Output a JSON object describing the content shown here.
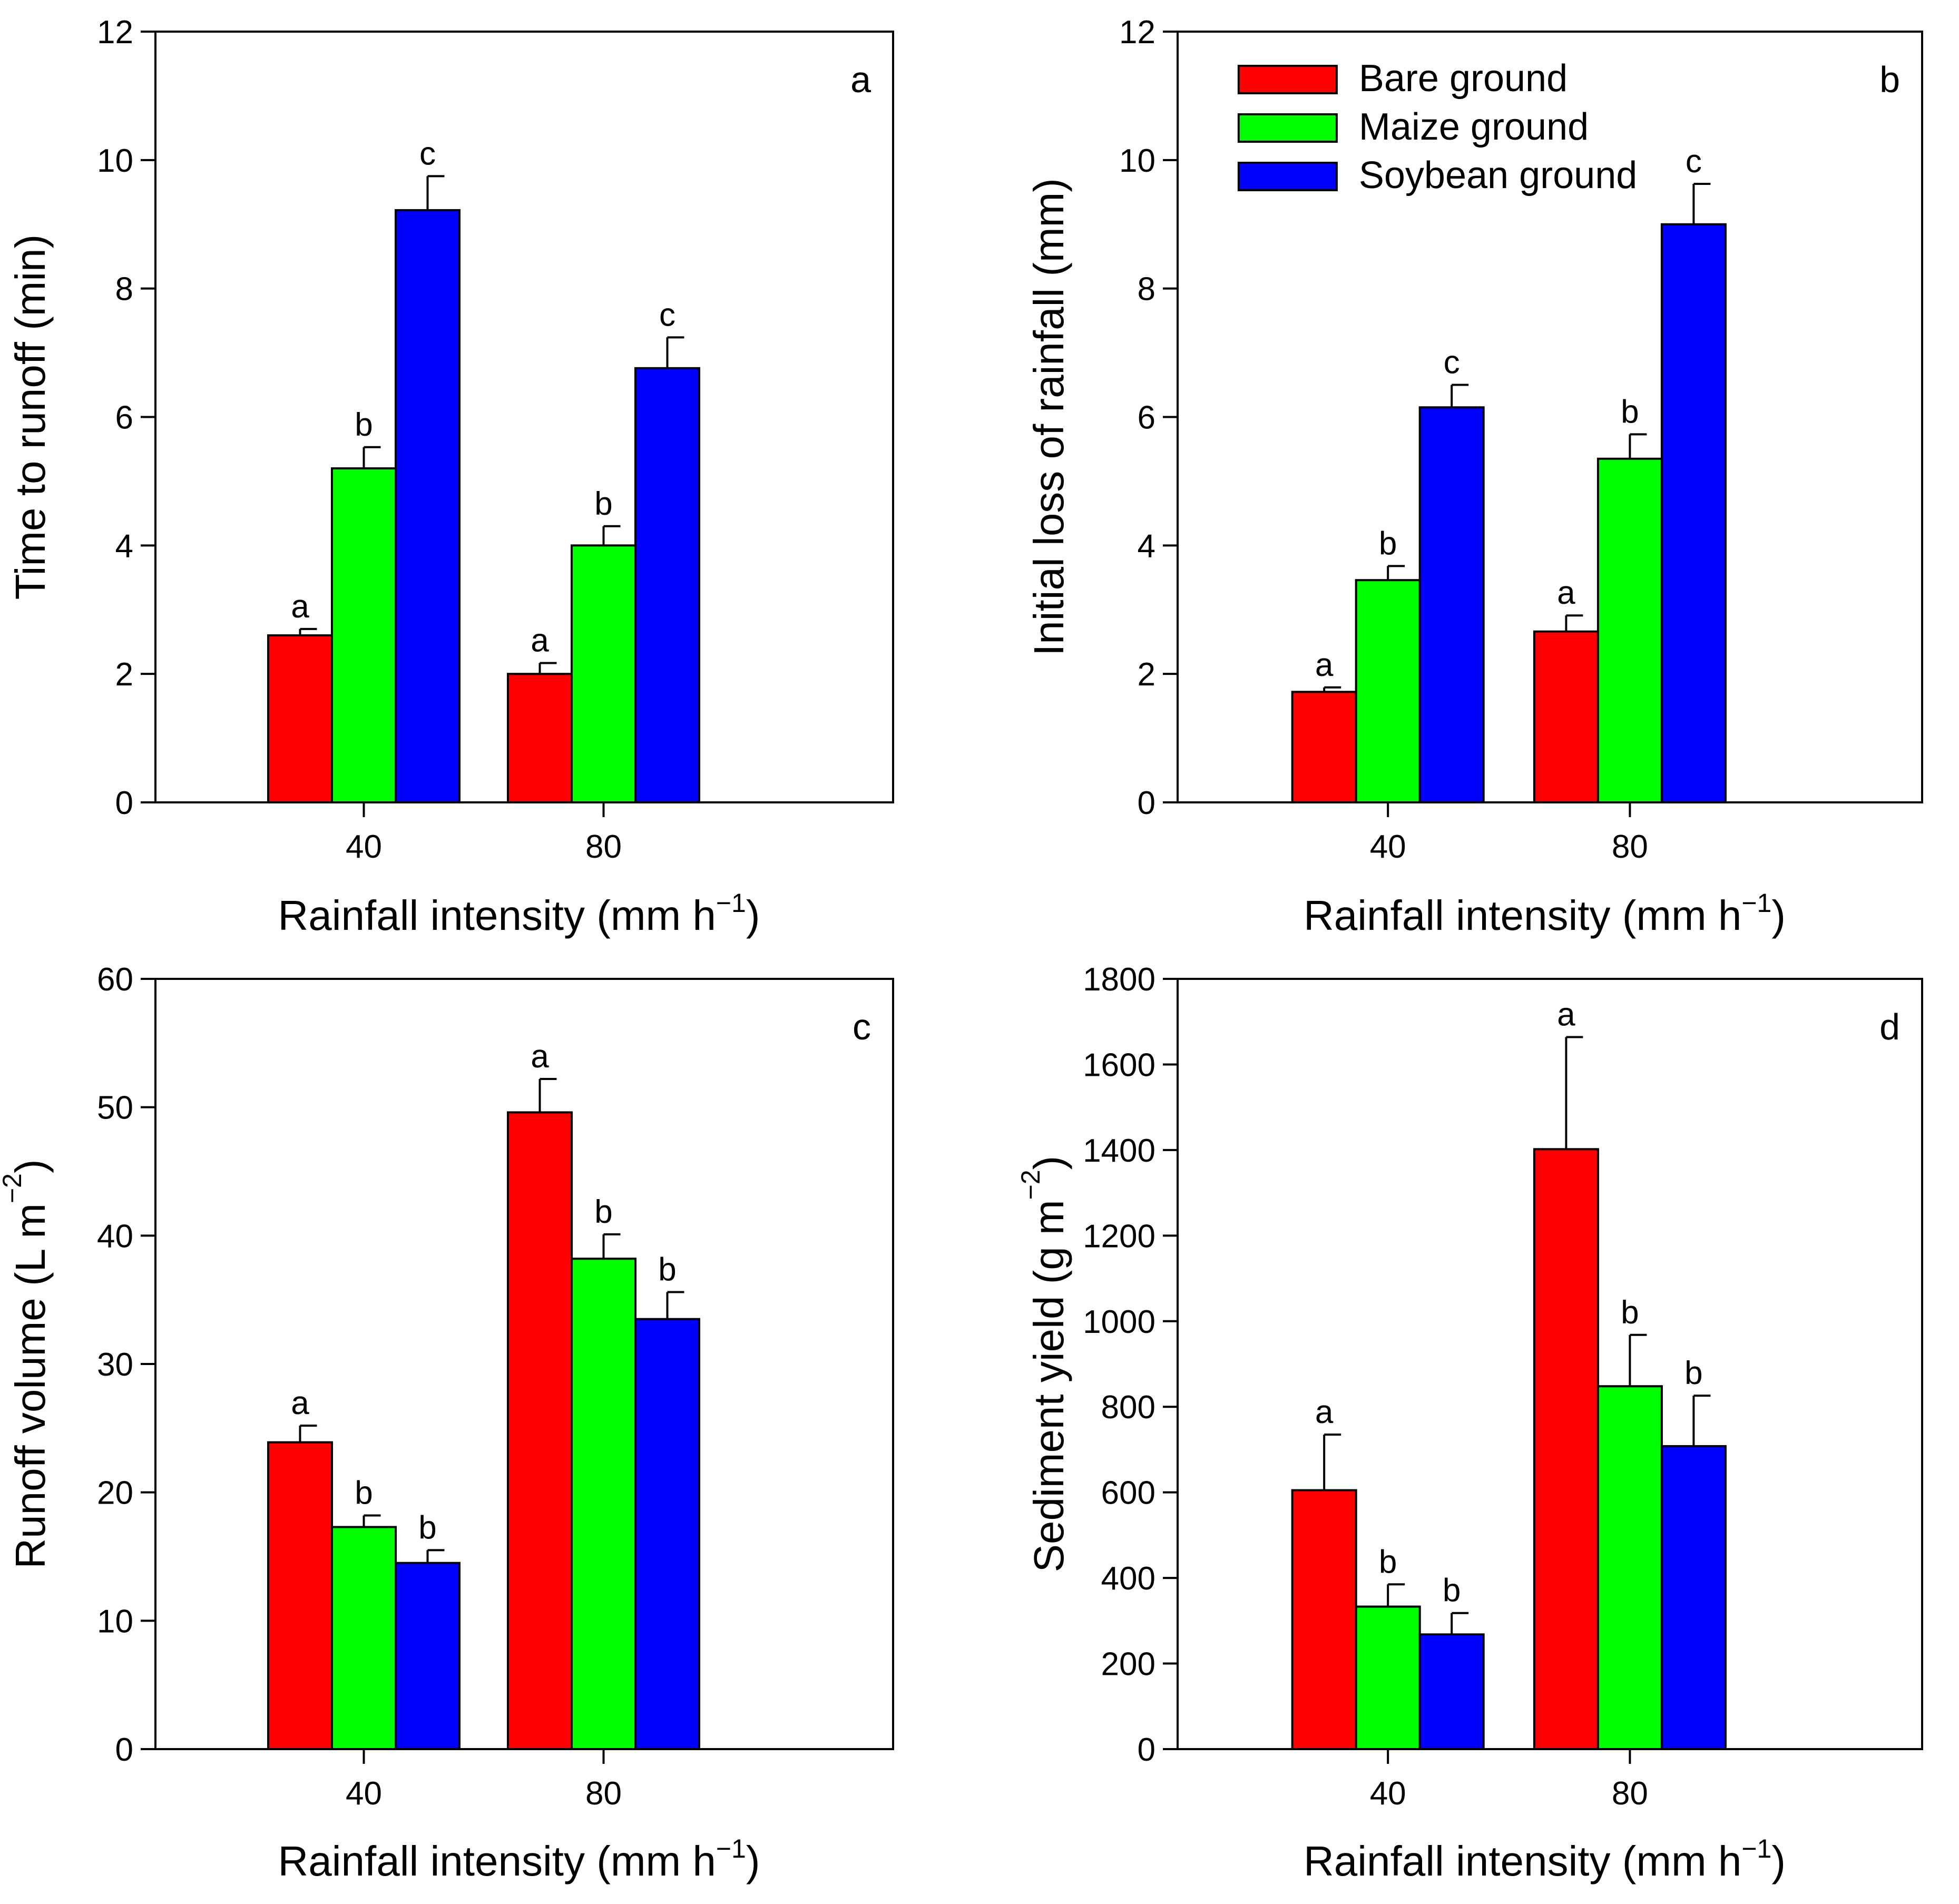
{
  "colors": {
    "bare": "#ff0000",
    "maize": "#00ff00",
    "soybean": "#0000ff"
  },
  "legend": {
    "panel": "b",
    "entries": [
      {
        "series": "bare",
        "label": "Bare ground"
      },
      {
        "series": "maize",
        "label": "Maize ground"
      },
      {
        "series": "soybean",
        "label": "Soybean ground"
      }
    ]
  },
  "chart_data": [
    {
      "id": "a",
      "type": "bar",
      "panel_letter": "a",
      "xlabel": {
        "main": "Rainfall intensity (mm h",
        "sup": "−1",
        "close": ")"
      },
      "ylabel": {
        "main": "Time to runoff (min)",
        "sup": "",
        "close": ""
      },
      "categories": [
        "40",
        "80"
      ],
      "ylim": [
        0,
        12
      ],
      "yticks": [
        "0",
        "2",
        "4",
        "6",
        "8",
        "10",
        "12"
      ],
      "series": [
        {
          "key": "bare",
          "name": "Bare ground",
          "values": [
            2.6,
            2.0
          ],
          "errors": [
            0.1,
            0.17
          ],
          "letters": [
            "a",
            "a"
          ]
        },
        {
          "key": "maize",
          "name": "Maize ground",
          "values": [
            5.2,
            4.0
          ],
          "errors": [
            0.33,
            0.3
          ],
          "letters": [
            "b",
            "b"
          ]
        },
        {
          "key": "soybean",
          "name": "Soybean ground",
          "values": [
            9.22,
            6.76
          ],
          "errors": [
            0.53,
            0.48
          ],
          "letters": [
            "c",
            "c"
          ]
        }
      ]
    },
    {
      "id": "b",
      "type": "bar",
      "panel_letter": "b",
      "xlabel": {
        "main": "Rainfall intensity (mm h",
        "sup": "−1",
        "close": ")"
      },
      "ylabel": {
        "main": "Initial loss of rainfall (mm)",
        "sup": "",
        "close": ""
      },
      "categories": [
        "40",
        "80"
      ],
      "ylim": [
        0,
        12
      ],
      "yticks": [
        "0",
        "2",
        "4",
        "6",
        "8",
        "10",
        "12"
      ],
      "series": [
        {
          "key": "bare",
          "name": "Bare ground",
          "values": [
            1.72,
            2.66
          ],
          "errors": [
            0.07,
            0.25
          ],
          "letters": [
            "a",
            "a"
          ]
        },
        {
          "key": "maize",
          "name": "Maize ground",
          "values": [
            3.46,
            5.35
          ],
          "errors": [
            0.22,
            0.38
          ],
          "letters": [
            "b",
            "b"
          ]
        },
        {
          "key": "soybean",
          "name": "Soybean ground",
          "values": [
            6.15,
            9.0
          ],
          "errors": [
            0.35,
            0.63
          ],
          "letters": [
            "c",
            "c"
          ]
        }
      ]
    },
    {
      "id": "c",
      "type": "bar",
      "panel_letter": "c",
      "xlabel": {
        "main": "Rainfall intensity (mm h",
        "sup": "−1",
        "close": ")"
      },
      "ylabel": {
        "main": "Runoff volume (L m",
        "sup": "−2",
        "close": ")"
      },
      "categories": [
        "40",
        "80"
      ],
      "ylim": [
        0,
        60
      ],
      "yticks": [
        "0",
        "10",
        "20",
        "30",
        "40",
        "50",
        "60"
      ],
      "series": [
        {
          "key": "bare",
          "name": "Bare ground",
          "values": [
            23.9,
            49.6
          ],
          "errors": [
            1.3,
            2.6
          ],
          "letters": [
            "a",
            "a"
          ]
        },
        {
          "key": "maize",
          "name": "Maize ground",
          "values": [
            17.3,
            38.2
          ],
          "errors": [
            0.9,
            1.9
          ],
          "letters": [
            "b",
            "b"
          ]
        },
        {
          "key": "soybean",
          "name": "Soybean ground",
          "values": [
            14.5,
            33.5
          ],
          "errors": [
            1.0,
            2.1
          ],
          "letters": [
            "b",
            "b"
          ]
        }
      ]
    },
    {
      "id": "d",
      "type": "bar",
      "panel_letter": "d",
      "xlabel": {
        "main": "Rainfall intensity (mm h",
        "sup": "−1",
        "close": ")"
      },
      "ylabel": {
        "main": "Sediment yield (g m",
        "sup": "−2",
        "close": ")"
      },
      "categories": [
        "40",
        "80"
      ],
      "ylim": [
        0,
        1800
      ],
      "yticks": [
        "0",
        "200",
        "400",
        "600",
        "800",
        "1000",
        "1200",
        "1400",
        "1600",
        "1800"
      ],
      "series": [
        {
          "key": "bare",
          "name": "Bare ground",
          "values": [
            605,
            1402
          ],
          "errors": [
            130,
            262
          ],
          "letters": [
            "a",
            "a"
          ]
        },
        {
          "key": "maize",
          "name": "Maize ground",
          "values": [
            333,
            848
          ],
          "errors": [
            52,
            120
          ],
          "letters": [
            "b",
            "b"
          ]
        },
        {
          "key": "soybean",
          "name": "Soybean ground",
          "values": [
            268,
            708
          ],
          "errors": [
            50,
            118
          ],
          "letters": [
            "b",
            "b"
          ]
        }
      ]
    }
  ]
}
